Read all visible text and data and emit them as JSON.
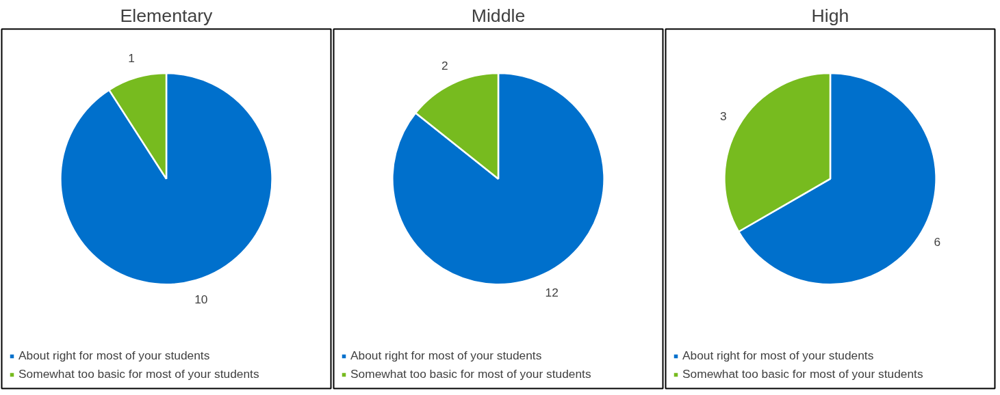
{
  "chart_data": [
    {
      "type": "pie",
      "title": "Elementary",
      "categories": [
        "About right for most of your students",
        "Somewhat too basic for most of your students"
      ],
      "values": [
        10,
        1
      ],
      "colors": [
        "#0070cc",
        "#77bb1f"
      ],
      "data_labels": true,
      "legend": "bottom"
    },
    {
      "type": "pie",
      "title": "Middle",
      "categories": [
        "About right for most of your students",
        "Somewhat too basic for most of your students"
      ],
      "values": [
        12,
        2
      ],
      "colors": [
        "#0070cc",
        "#77bb1f"
      ],
      "data_labels": true,
      "legend": "bottom"
    },
    {
      "type": "pie",
      "title": "High",
      "categories": [
        "About right for most of your students",
        "Somewhat too basic for most of your students"
      ],
      "values": [
        6,
        3
      ],
      "colors": [
        "#0070cc",
        "#77bb1f"
      ],
      "data_labels": true,
      "legend": "bottom"
    }
  ]
}
